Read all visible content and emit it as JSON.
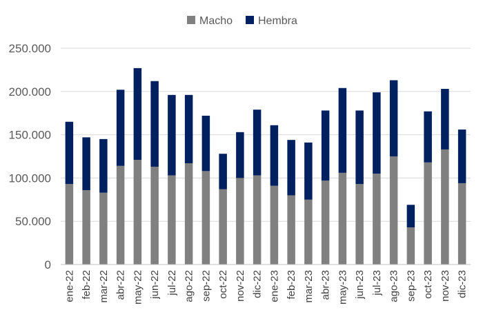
{
  "chart_data": {
    "type": "bar",
    "stacked": true,
    "categories": [
      "ene-22",
      "feb-22",
      "mar-22",
      "abr-22",
      "may-22",
      "jun-22",
      "jul-22",
      "ago-22",
      "sep-22",
      "oct-22",
      "nov-22",
      "dic-22",
      "ene-23",
      "feb-23",
      "mar-23",
      "abr-23",
      "may-23",
      "jun-23",
      "jul-23",
      "ago-23",
      "sep-23",
      "oct-23",
      "nov-23",
      "dic-23"
    ],
    "series": [
      {
        "name": "Macho",
        "color": "#808080",
        "values": [
          93000,
          86000,
          83000,
          114000,
          121000,
          113000,
          103000,
          117000,
          108000,
          87000,
          100000,
          103000,
          91000,
          80000,
          75000,
          97000,
          106000,
          93000,
          105000,
          125000,
          43000,
          118000,
          133000,
          94000
        ]
      },
      {
        "name": "Hembra",
        "color": "#002060",
        "values": [
          72000,
          61000,
          62000,
          88000,
          106000,
          99000,
          93000,
          79000,
          64000,
          41000,
          53000,
          76000,
          70000,
          64000,
          66000,
          81000,
          98000,
          85000,
          94000,
          88000,
          26000,
          59000,
          70000,
          62000
        ]
      }
    ],
    "ylim": [
      0,
      250000
    ],
    "y_ticks": [
      {
        "value": 0,
        "label": "0"
      },
      {
        "value": 50000,
        "label": "50.000"
      },
      {
        "value": 100000,
        "label": "100.000"
      },
      {
        "value": 150000,
        "label": "150.000"
      },
      {
        "value": 200000,
        "label": "200.000"
      },
      {
        "value": 250000,
        "label": "250.000"
      }
    ],
    "grid": true,
    "legend_position": "top-center",
    "title": "",
    "xlabel": "",
    "ylabel": ""
  }
}
